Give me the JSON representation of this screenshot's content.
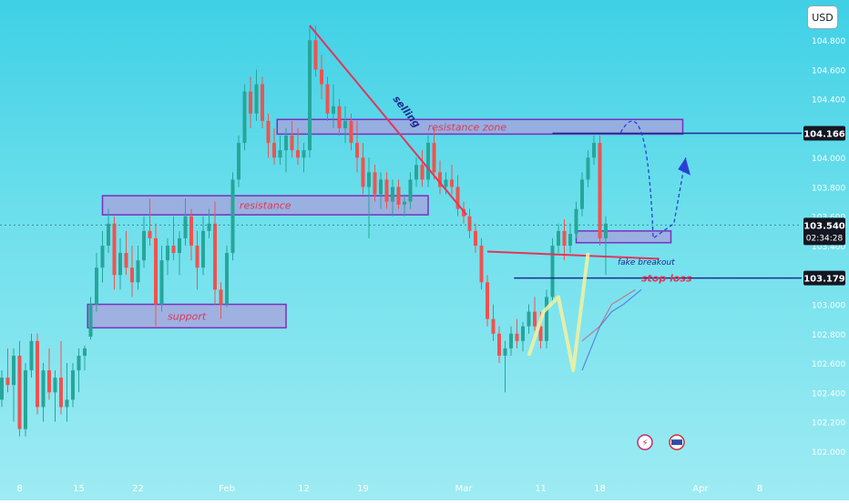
{
  "currency_button": "USD",
  "chart_data": {
    "type": "candlestick",
    "ylim": [
      101.85,
      104.95
    ],
    "y_ticks": [
      104.8,
      104.6,
      104.4,
      104.2,
      104.0,
      103.8,
      103.6,
      103.4,
      103.2,
      103.0,
      102.8,
      102.6,
      102.4,
      102.2,
      102.0
    ],
    "y_tick_labels": [
      "104.800",
      "104.600",
      "104.400",
      "104.200",
      "104.000",
      "103.800",
      "103.600",
      "103.400",
      "103.200",
      "103.000",
      "102.800",
      "102.600",
      "102.400",
      "102.200",
      "102.000"
    ],
    "x_ticks": [
      {
        "label": "8",
        "bar": 3
      },
      {
        "label": "15",
        "bar": 13
      },
      {
        "label": "22",
        "bar": 23
      },
      {
        "label": "Feb",
        "bar": 38
      },
      {
        "label": "12",
        "bar": 51
      },
      {
        "label": "19",
        "bar": 61
      },
      {
        "label": "Mar",
        "bar": 78
      },
      {
        "label": "11",
        "bar": 91
      },
      {
        "label": "18",
        "bar": 101
      },
      {
        "label": "Apr",
        "bar": 118
      },
      {
        "label": "8",
        "bar": 128
      }
    ],
    "price_tags": [
      {
        "label": "104.166",
        "value": 104.166
      },
      {
        "label": "103.540",
        "sub": "02:34:28",
        "value": 103.54
      },
      {
        "label": "103.179",
        "value": 103.179
      }
    ],
    "zones": [
      {
        "label": "support",
        "bar_from": 14.5,
        "bar_to": 48,
        "top": 103.0,
        "bottom": 102.84
      },
      {
        "label": "resistance",
        "bar_from": 17,
        "bar_to": 72,
        "top": 103.74,
        "bottom": 103.61
      },
      {
        "label": "resistance zone",
        "bar_from": 46.5,
        "bar_to": 115,
        "top": 104.26,
        "bottom": 104.16
      },
      {
        "label": "",
        "bar_from": 97,
        "bar_to": 113,
        "top": 103.5,
        "bottom": 103.42
      }
    ],
    "annotations": {
      "selling": "selling",
      "fake_breakout": "fake breakout",
      "stop_loss": "stop loss"
    },
    "candles": [
      [
        102.35,
        102.55,
        102.3,
        102.5
      ],
      [
        102.5,
        102.7,
        102.4,
        102.45
      ],
      [
        102.45,
        102.7,
        102.2,
        102.65
      ],
      [
        102.65,
        102.75,
        102.1,
        102.15
      ],
      [
        102.15,
        102.6,
        102.1,
        102.55
      ],
      [
        102.55,
        102.8,
        102.5,
        102.75
      ],
      [
        102.75,
        102.8,
        102.25,
        102.3
      ],
      [
        102.3,
        102.6,
        102.2,
        102.55
      ],
      [
        102.55,
        102.7,
        102.35,
        102.4
      ],
      [
        102.4,
        102.55,
        102.2,
        102.5
      ],
      [
        102.5,
        102.75,
        102.25,
        102.3
      ],
      [
        102.3,
        102.6,
        102.2,
        102.35
      ],
      [
        102.35,
        102.6,
        102.3,
        102.55
      ],
      [
        102.55,
        102.7,
        102.4,
        102.65
      ],
      [
        102.65,
        102.72,
        102.55,
        102.7
      ],
      [
        102.78,
        103.05,
        102.76,
        103.0
      ],
      [
        103.0,
        103.35,
        102.95,
        103.25
      ],
      [
        103.25,
        103.5,
        103.15,
        103.4
      ],
      [
        103.4,
        103.65,
        103.35,
        103.55
      ],
      [
        103.55,
        103.6,
        103.1,
        103.2
      ],
      [
        103.2,
        103.45,
        103.1,
        103.35
      ],
      [
        103.35,
        103.5,
        103.2,
        103.25
      ],
      [
        103.25,
        103.4,
        103.05,
        103.15
      ],
      [
        103.15,
        103.4,
        103.1,
        103.3
      ],
      [
        103.3,
        103.6,
        103.25,
        103.5
      ],
      [
        103.5,
        103.72,
        103.4,
        103.45
      ],
      [
        103.45,
        103.55,
        102.85,
        103.0
      ],
      [
        103.0,
        103.4,
        102.95,
        103.3
      ],
      [
        103.3,
        103.45,
        103.2,
        103.4
      ],
      [
        103.4,
        103.6,
        103.3,
        103.35
      ],
      [
        103.35,
        103.5,
        103.2,
        103.45
      ],
      [
        103.45,
        103.72,
        103.4,
        103.6
      ],
      [
        103.6,
        103.65,
        103.3,
        103.4
      ],
      [
        103.4,
        103.5,
        103.1,
        103.25
      ],
      [
        103.25,
        103.6,
        103.2,
        103.5
      ],
      [
        103.5,
        103.65,
        103.45,
        103.55
      ],
      [
        103.55,
        103.7,
        103.0,
        103.1
      ],
      [
        103.1,
        103.15,
        102.9,
        103.0
      ],
      [
        103.0,
        103.4,
        102.98,
        103.35
      ],
      [
        103.35,
        103.9,
        103.3,
        103.85
      ],
      [
        103.85,
        104.15,
        103.8,
        104.1
      ],
      [
        104.1,
        104.5,
        104.05,
        104.45
      ],
      [
        104.45,
        104.55,
        104.2,
        104.3
      ],
      [
        104.3,
        104.6,
        104.25,
        104.5
      ],
      [
        104.5,
        104.55,
        104.2,
        104.25
      ],
      [
        104.25,
        104.3,
        104.0,
        104.1
      ],
      [
        104.1,
        104.2,
        103.95,
        104.0
      ],
      [
        104.0,
        104.15,
        103.95,
        104.05
      ],
      [
        104.05,
        104.2,
        103.9,
        104.15
      ],
      [
        104.15,
        104.25,
        104.0,
        104.05
      ],
      [
        104.05,
        104.2,
        103.95,
        104.0
      ],
      [
        104.0,
        104.1,
        103.9,
        104.05
      ],
      [
        104.05,
        104.9,
        104.0,
        104.8
      ],
      [
        104.8,
        104.9,
        104.55,
        104.6
      ],
      [
        104.6,
        104.7,
        104.4,
        104.5
      ],
      [
        104.5,
        104.55,
        104.25,
        104.3
      ],
      [
        104.3,
        104.5,
        104.2,
        104.35
      ],
      [
        104.35,
        104.4,
        104.15,
        104.2
      ],
      [
        104.2,
        104.35,
        104.1,
        104.25
      ],
      [
        104.25,
        104.3,
        104.05,
        104.1
      ],
      [
        104.1,
        104.25,
        103.9,
        104.0
      ],
      [
        104.0,
        104.1,
        103.75,
        103.8
      ],
      [
        103.8,
        104.0,
        103.45,
        103.9
      ],
      [
        103.9,
        103.95,
        103.7,
        103.75
      ],
      [
        103.75,
        103.9,
        103.65,
        103.85
      ],
      [
        103.85,
        103.9,
        103.65,
        103.7
      ],
      [
        103.7,
        103.85,
        103.6,
        103.8
      ],
      [
        103.8,
        103.85,
        103.65,
        103.68
      ],
      [
        103.68,
        103.75,
        103.6,
        103.7
      ],
      [
        103.7,
        103.9,
        103.65,
        103.85
      ],
      [
        103.85,
        104.0,
        103.8,
        103.95
      ],
      [
        103.95,
        104.05,
        103.8,
        103.85
      ],
      [
        103.85,
        104.15,
        103.8,
        104.1
      ],
      [
        104.1,
        104.2,
        103.85,
        103.9
      ],
      [
        103.9,
        103.98,
        103.75,
        103.8
      ],
      [
        103.8,
        103.9,
        103.75,
        103.85
      ],
      [
        103.85,
        103.95,
        103.75,
        103.8
      ],
      [
        103.8,
        103.88,
        103.6,
        103.65
      ],
      [
        103.65,
        103.7,
        103.55,
        103.6
      ],
      [
        103.6,
        103.65,
        103.45,
        103.5
      ],
      [
        103.5,
        103.55,
        103.35,
        103.4
      ],
      [
        103.4,
        103.45,
        103.1,
        103.15
      ],
      [
        103.15,
        103.2,
        102.85,
        102.9
      ],
      [
        102.9,
        103.0,
        102.75,
        102.8
      ],
      [
        102.8,
        102.85,
        102.6,
        102.65
      ],
      [
        102.65,
        102.75,
        102.4,
        102.7
      ],
      [
        102.7,
        102.85,
        102.65,
        102.8
      ],
      [
        102.8,
        102.9,
        102.7,
        102.75
      ],
      [
        102.75,
        102.88,
        102.68,
        102.85
      ],
      [
        102.85,
        103.0,
        102.8,
        102.95
      ],
      [
        102.95,
        103.05,
        102.82,
        102.85
      ],
      [
        102.85,
        102.95,
        102.7,
        102.75
      ],
      [
        102.75,
        103.1,
        102.7,
        103.05
      ],
      [
        103.05,
        103.45,
        103.0,
        103.4
      ],
      [
        103.4,
        103.55,
        103.35,
        103.5
      ],
      [
        103.5,
        103.58,
        103.3,
        103.4
      ],
      [
        103.4,
        103.55,
        103.35,
        103.48
      ],
      [
        103.48,
        103.7,
        103.45,
        103.65
      ],
      [
        103.65,
        103.9,
        103.6,
        103.85
      ],
      [
        103.85,
        104.05,
        103.8,
        104.0
      ],
      [
        104.0,
        104.15,
        103.95,
        104.1
      ],
      [
        104.1,
        104.15,
        103.4,
        103.45
      ],
      [
        103.45,
        103.6,
        103.2,
        103.55
      ]
    ],
    "blue_line": [
      [
        98,
        102.55
      ],
      [
        101,
        102.85
      ],
      [
        103,
        102.95
      ],
      [
        105,
        103.0
      ],
      [
        108,
        103.1
      ]
    ],
    "red_line": [
      [
        98,
        102.75
      ],
      [
        101,
        102.85
      ],
      [
        103,
        103.0
      ],
      [
        105,
        103.05
      ],
      [
        107,
        103.1
      ]
    ]
  }
}
